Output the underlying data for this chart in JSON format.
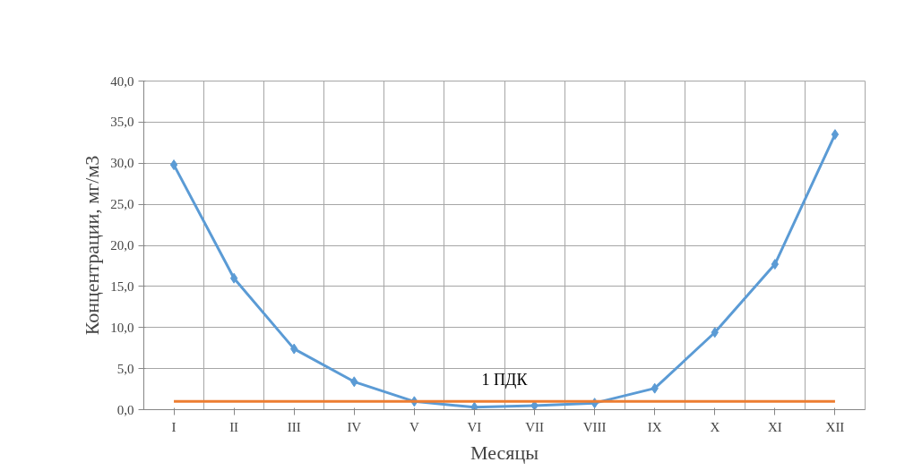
{
  "chart_data": {
    "type": "line",
    "xlabel": "Месяцы",
    "ylabel": "Концентрации, мг/м3",
    "categories": [
      "I",
      "II",
      "III",
      "IV",
      "V",
      "VI",
      "VII",
      "VIII",
      "IX",
      "X",
      "XI",
      "XII"
    ],
    "series": [
      {
        "color": "#5b9bd5",
        "marker": "diamond",
        "values": [
          29.8,
          16.0,
          7.4,
          3.4,
          1.0,
          0.3,
          0.5,
          0.8,
          2.6,
          9.4,
          17.7,
          33.5
        ]
      },
      {
        "name": "1 ПДК",
        "color": "#ed7d31",
        "marker": "none",
        "values": [
          1.0,
          1.0,
          1.0,
          1.0,
          1.0,
          1.0,
          1.0,
          1.0,
          1.0,
          1.0,
          1.0,
          1.0
        ]
      }
    ],
    "ylim": [
      0,
      40
    ],
    "yticks": [
      {
        "value": 0,
        "label": "0,0"
      },
      {
        "value": 5,
        "label": "5,0"
      },
      {
        "value": 10,
        "label": "10,0"
      },
      {
        "value": 15,
        "label": "15,0"
      },
      {
        "value": 20,
        "label": "20,0"
      },
      {
        "value": 25,
        "label": "25,0"
      },
      {
        "value": 30,
        "label": "30,0"
      },
      {
        "value": 35,
        "label": "35,0"
      },
      {
        "value": 40,
        "label": "40,0"
      }
    ],
    "grid": true,
    "line_style": "solid"
  }
}
